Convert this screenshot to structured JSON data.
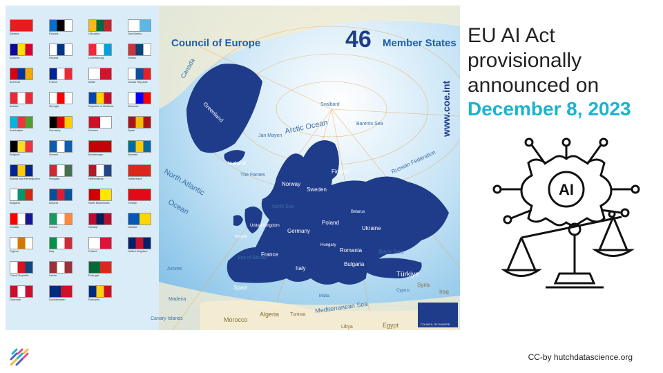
{
  "map": {
    "title": "Council of Europe",
    "count": "46",
    "count_label": "Member States",
    "website": "www.coe.int",
    "labels": {
      "canada": "Canada",
      "greenland": "Greenland",
      "arctic_ocean": "Arctic Ocean",
      "north_atlantic": "North Atlantic",
      "ocean": "Ocean",
      "jan_mayen": "Jan Mayen",
      "faroes": "The Faroes",
      "russian_federation": "Russian Federation",
      "barents_sea": "Barents Sea",
      "svalbard": "Svalbard",
      "iceland": "Iceland",
      "finland": "Finland",
      "sweden": "Sweden",
      "norway": "Norway",
      "ukraine": "Ukraine",
      "poland": "Poland",
      "germany": "Germany",
      "france": "France",
      "spain": "Spain",
      "italy": "Italy",
      "romania": "Romania",
      "bulgaria": "Bulgaria",
      "turkiye": "Türkiye",
      "black_sea": "Black Sea",
      "mediterranean": "Mediterranean Sea",
      "morocco": "Morocco",
      "algeria": "Algeria",
      "tunisia": "Tunisia",
      "egypt": "Egypt",
      "libya": "Libya",
      "syria": "Syria",
      "iraq": "Iraq",
      "azores": "Azores",
      "madeira": "Madeira",
      "canary": "Canary Islands",
      "bay_of_biscay": "Bay of Biscay",
      "north_sea": "North Sea",
      "united_kingdom": "United Kingdom",
      "ireland": "Ireland",
      "belarus": "Belarus",
      "hungary": "Hungary",
      "malta": "Malta",
      "cyprus": "Cyprus"
    },
    "badge": "COUNCIL OF EUROPE"
  },
  "flags": [
    {
      "name": "Albania",
      "colors": [
        "#e41e20",
        "#e41e20"
      ]
    },
    {
      "name": "Andorra",
      "colors": [
        "#10069f",
        "#fedf00",
        "#d50032"
      ]
    },
    {
      "name": "Armenia",
      "colors": [
        "#d90012",
        "#0033a0",
        "#f2a800"
      ]
    },
    {
      "name": "Austria",
      "colors": [
        "#ed2939",
        "#ffffff",
        "#ed2939"
      ]
    },
    {
      "name": "Azerbaijan",
      "colors": [
        "#00b5e2",
        "#ef3340",
        "#509e2f"
      ]
    },
    {
      "name": "Belgium",
      "colors": [
        "#000000",
        "#fdda24",
        "#ef3340"
      ]
    },
    {
      "name": "Bosnia and Herzegovina",
      "colors": [
        "#002395",
        "#fecb00",
        "#002395"
      ]
    },
    {
      "name": "Bulgaria",
      "colors": [
        "#ffffff",
        "#00966e",
        "#d62612"
      ]
    },
    {
      "name": "Croatia",
      "colors": [
        "#ff0000",
        "#ffffff",
        "#171796"
      ]
    },
    {
      "name": "Cyprus",
      "colors": [
        "#ffffff",
        "#d57800",
        "#ffffff"
      ]
    },
    {
      "name": "Czech Republic",
      "colors": [
        "#ffffff",
        "#d7141a",
        "#11457e"
      ]
    },
    {
      "name": "Denmark",
      "colors": [
        "#c8102e",
        "#ffffff",
        "#c8102e"
      ]
    },
    {
      "name": "Estonia",
      "colors": [
        "#0072ce",
        "#000000",
        "#ffffff"
      ]
    },
    {
      "name": "Finland",
      "colors": [
        "#ffffff",
        "#003580",
        "#ffffff"
      ]
    },
    {
      "name": "France",
      "colors": [
        "#002395",
        "#ffffff",
        "#ed2939"
      ]
    },
    {
      "name": "Georgia",
      "colors": [
        "#ffffff",
        "#ff0000",
        "#ffffff"
      ]
    },
    {
      "name": "Germany",
      "colors": [
        "#000000",
        "#dd0000",
        "#ffce00"
      ]
    },
    {
      "name": "Greece",
      "colors": [
        "#0d5eaf",
        "#ffffff",
        "#0d5eaf"
      ]
    },
    {
      "name": "Hungary",
      "colors": [
        "#ce2939",
        "#ffffff",
        "#477050"
      ]
    },
    {
      "name": "Iceland",
      "colors": [
        "#02529c",
        "#dc1e35",
        "#02529c"
      ]
    },
    {
      "name": "Ireland",
      "colors": [
        "#169b62",
        "#ffffff",
        "#ff883e"
      ]
    },
    {
      "name": "Italy",
      "colors": [
        "#009246",
        "#ffffff",
        "#ce2b37"
      ]
    },
    {
      "name": "Latvia",
      "colors": [
        "#9e3039",
        "#ffffff",
        "#9e3039"
      ]
    },
    {
      "name": "Liechtenstein",
      "colors": [
        "#002b7f",
        "#ce1126"
      ]
    },
    {
      "name": "Lithuania",
      "colors": [
        "#fdb913",
        "#006a44",
        "#c1272d"
      ]
    },
    {
      "name": "Luxembourg",
      "colors": [
        "#ed2939",
        "#ffffff",
        "#00a1de"
      ]
    },
    {
      "name": "Malta",
      "colors": [
        "#ffffff",
        "#cf142b"
      ]
    },
    {
      "name": "Republic of Moldova",
      "colors": [
        "#0046ae",
        "#ffd200",
        "#cc092f"
      ]
    },
    {
      "name": "Monaco",
      "colors": [
        "#ce1126",
        "#ffffff"
      ]
    },
    {
      "name": "Montenegro",
      "colors": [
        "#c40308",
        "#c40308"
      ]
    },
    {
      "name": "Netherlands",
      "colors": [
        "#ae1c28",
        "#ffffff",
        "#21468b"
      ]
    },
    {
      "name": "North Macedonia",
      "colors": [
        "#d20000",
        "#ffe600"
      ]
    },
    {
      "name": "Norway",
      "colors": [
        "#ba0c2f",
        "#00205b",
        "#ba0c2f"
      ]
    },
    {
      "name": "Poland",
      "colors": [
        "#ffffff",
        "#dc143c"
      ]
    },
    {
      "name": "Portugal",
      "colors": [
        "#046a38",
        "#da291c"
      ]
    },
    {
      "name": "Romania",
      "colors": [
        "#002b7f",
        "#fcd116",
        "#ce1126"
      ]
    },
    {
      "name": "San Marino",
      "colors": [
        "#ffffff",
        "#5eb6e4"
      ]
    },
    {
      "name": "Serbia",
      "colors": [
        "#c6363c",
        "#0c4076",
        "#ffffff"
      ]
    },
    {
      "name": "Slovak Republic",
      "colors": [
        "#ffffff",
        "#0b4ea2",
        "#ee1c25"
      ]
    },
    {
      "name": "Slovenia",
      "colors": [
        "#ffffff",
        "#0000ff",
        "#ff0000"
      ]
    },
    {
      "name": "Spain",
      "colors": [
        "#aa151b",
        "#f1bf00",
        "#aa151b"
      ]
    },
    {
      "name": "Sweden",
      "colors": [
        "#006aa7",
        "#fecc00",
        "#006aa7"
      ]
    },
    {
      "name": "Switzerland",
      "colors": [
        "#da291c",
        "#da291c"
      ]
    },
    {
      "name": "Türkiye",
      "colors": [
        "#e30a17",
        "#e30a17"
      ]
    },
    {
      "name": "Ukraine",
      "colors": [
        "#0057b7",
        "#ffd700"
      ]
    },
    {
      "name": "United Kingdom",
      "colors": [
        "#012169",
        "#c8102e",
        "#012169"
      ]
    }
  ],
  "headline": "EU AI Act provisionally announced on",
  "date": "December 8, 2023",
  "icon": {
    "name": "ai-justice-scale-icon",
    "label": "AI"
  },
  "credit": "CC-by hutchdatascience.org",
  "colors": {
    "accent": "#1bb3d1",
    "map_land": "#1f3c8a",
    "map_sea": "#d9ecf7"
  }
}
